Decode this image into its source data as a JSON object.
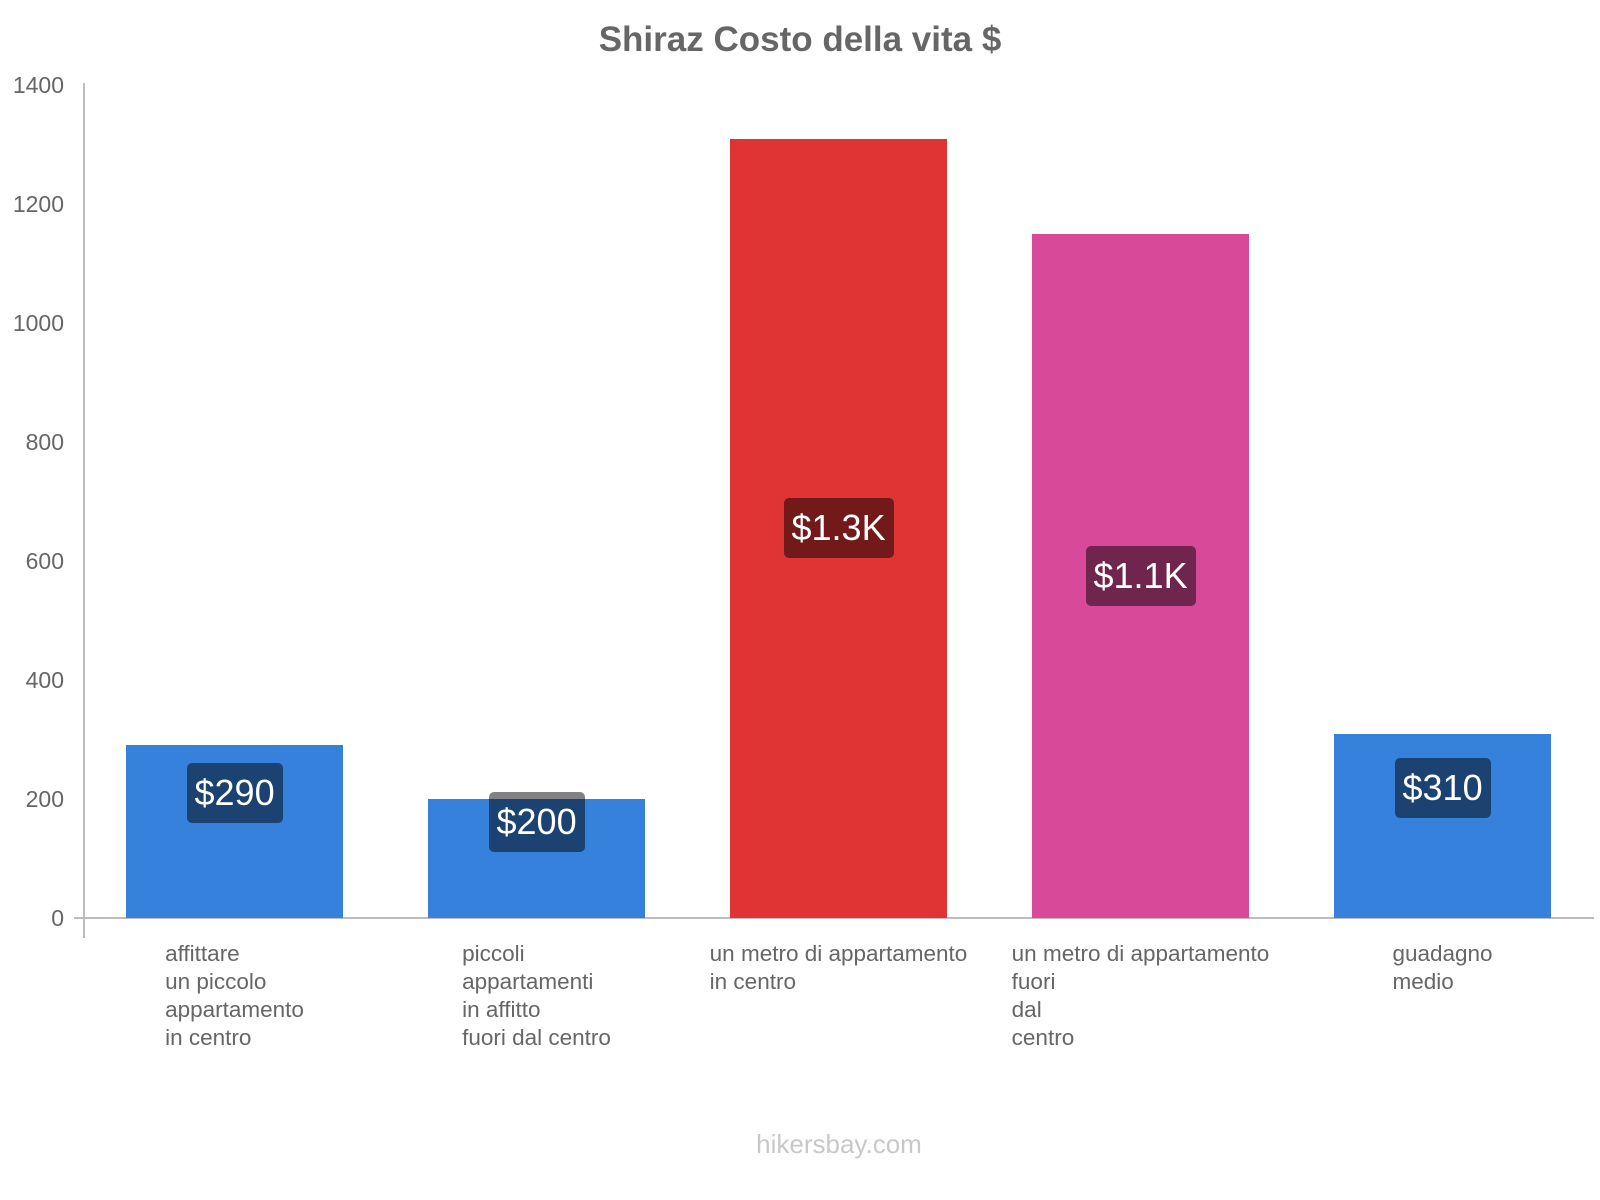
{
  "title": "Shiraz Costo della vita $",
  "footer": "hikersbay.com",
  "colors": {
    "blue": "#3581dc",
    "red": "#e03434",
    "pink": "#d9499a",
    "axis": "#bdbdbd",
    "text": "#666666",
    "footer": "#c8c8c8"
  },
  "y_axis": {
    "ticks": [
      "0",
      "200",
      "400",
      "600",
      "800",
      "1000",
      "1200",
      "1400"
    ]
  },
  "bars": [
    {
      "label_lines": [
        "affittare",
        "un piccolo",
        "appartamento",
        "in centro"
      ],
      "value": 290,
      "display": "$290",
      "color": "#3581dc"
    },
    {
      "label_lines": [
        "piccoli",
        "appartamenti",
        "in affitto",
        "fuori dal centro"
      ],
      "value": 200,
      "display": "$200",
      "color": "#3581dc"
    },
    {
      "label_lines": [
        "un metro di appartamento",
        "in centro"
      ],
      "value": 1310,
      "display": "$1.3K",
      "color": "#e03434"
    },
    {
      "label_lines": [
        "un metro di appartamento",
        "fuori",
        "dal",
        "centro"
      ],
      "value": 1150,
      "display": "$1.1K",
      "color": "#d9499a"
    },
    {
      "label_lines": [
        "guadagno",
        "medio"
      ],
      "value": 310,
      "display": "$310",
      "color": "#3581dc"
    }
  ],
  "chart_data": {
    "type": "bar",
    "title": "Shiraz Costo della vita $",
    "categories": [
      "affittare un piccolo appartamento in centro",
      "piccoli appartamenti in affitto fuori dal centro",
      "un metro di appartamento in centro",
      "un metro di appartamento fuori dal centro",
      "guadagno medio"
    ],
    "values": [
      290,
      200,
      1310,
      1150,
      310
    ],
    "data_labels": [
      "$290",
      "$200",
      "$1.3K",
      "$1.1K",
      "$310"
    ],
    "bar_colors": [
      "#3581dc",
      "#3581dc",
      "#e03434",
      "#d9499a",
      "#3581dc"
    ],
    "xlabel": "",
    "ylabel": "",
    "ylim": [
      0,
      1400
    ],
    "yticks": [
      0,
      200,
      400,
      600,
      800,
      1000,
      1200,
      1400
    ],
    "grid": false,
    "legend": "none",
    "source": "hikersbay.com"
  }
}
